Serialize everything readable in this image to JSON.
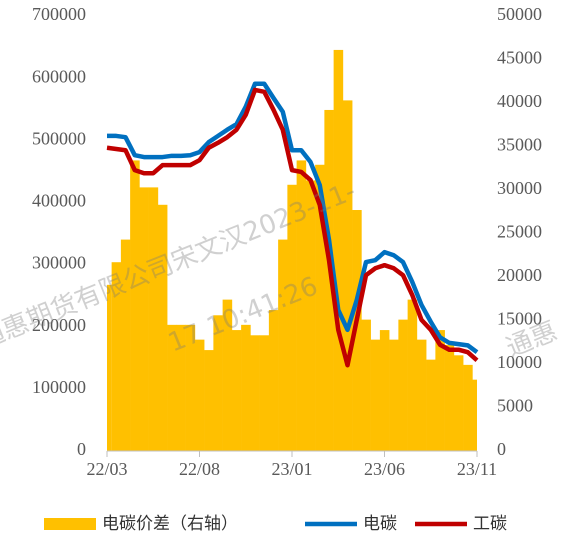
{
  "chart_data": {
    "type": "combo",
    "categories": [
      "22/03",
      null,
      null,
      null,
      null,
      null,
      null,
      null,
      null,
      null,
      "22/08",
      null,
      null,
      null,
      null,
      null,
      null,
      null,
      null,
      null,
      "23/01",
      null,
      null,
      null,
      null,
      null,
      null,
      null,
      null,
      null,
      "23/06",
      null,
      null,
      null,
      null,
      null,
      null,
      null,
      null,
      null,
      "23/11"
    ],
    "series": [
      {
        "name": "电碳价差（右轴）",
        "type": "bar",
        "axis": "y2",
        "color": "#FFC000",
        "values": [
          19100,
          21700,
          24300,
          33400,
          30300,
          30300,
          28300,
          14500,
          14500,
          14500,
          12800,
          11600,
          15600,
          17400,
          13900,
          14500,
          13300,
          13300,
          16200,
          24300,
          30600,
          33400,
          31100,
          32900,
          39200,
          46100,
          40300,
          27700,
          15100,
          12800,
          13900,
          12800,
          15100,
          17400,
          12800,
          10500,
          13900,
          12200,
          11000,
          9900,
          8200
        ]
      },
      {
        "name": "电碳",
        "type": "line",
        "color": "#0070C0",
        "values": [
          507000,
          507000,
          505000,
          476000,
          473000,
          473000,
          473000,
          475000,
          475000,
          476000,
          481000,
          497000,
          507000,
          517000,
          526000,
          554000,
          591000,
          591000,
          568000,
          546000,
          484000,
          484000,
          465000,
          428000,
          340000,
          227000,
          195000,
          243000,
          304000,
          307000,
          320000,
          315000,
          304000,
          272000,
          235000,
          208000,
          183000,
          174000,
          172000,
          170000,
          159000
        ]
      },
      {
        "name": "工碳",
        "type": "line",
        "color": "#C00000",
        "values": [
          488000,
          486000,
          484000,
          452000,
          447000,
          447000,
          460000,
          460000,
          460000,
          460000,
          468000,
          488000,
          496000,
          505000,
          517000,
          541000,
          581000,
          578000,
          549000,
          517000,
          452000,
          449000,
          436000,
          396000,
          307000,
          195000,
          138000,
          211000,
          283000,
          294000,
          299000,
          294000,
          283000,
          251000,
          211000,
          195000,
          171000,
          163000,
          163000,
          159000,
          146000
        ]
      }
    ],
    "ylim": [
      0,
      700000
    ],
    "yticks": [
      0,
      100000,
      200000,
      300000,
      400000,
      500000,
      600000,
      700000
    ],
    "y2lim": [
      0,
      50000
    ],
    "y2ticks": [
      0,
      5000,
      10000,
      15000,
      20000,
      25000,
      30000,
      35000,
      40000,
      45000,
      50000
    ],
    "legend": "bottom",
    "watermark": [
      "通惠期货有限公司宋文汉2023-11-",
      "17 10:41:26",
      "通惠"
    ]
  }
}
